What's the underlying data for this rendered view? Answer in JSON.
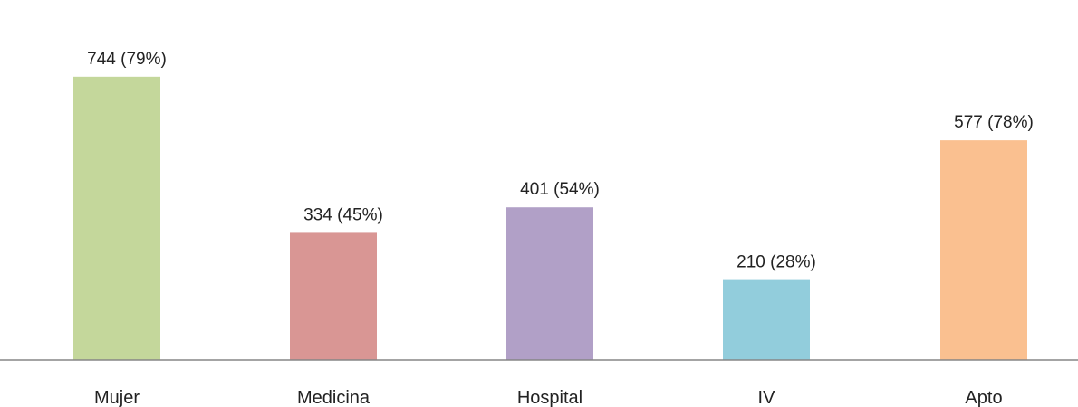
{
  "chart_data": {
    "type": "bar",
    "title": "",
    "xlabel": "",
    "ylabel": "",
    "categories": [
      "Mujer",
      "Medicina",
      "Hospital",
      "IV",
      "Apto"
    ],
    "values": [
      744,
      334,
      401,
      210,
      577
    ],
    "percentages": [
      "(79%)",
      "(45%)",
      "(54%)",
      "(28%)",
      "(78%)"
    ],
    "value_labels": [
      "744",
      "334",
      "401",
      "210",
      "577"
    ],
    "ylim": [
      0,
      822
    ],
    "grid": false,
    "legend": "none",
    "colors": [
      "#c4d79b",
      "#d99694",
      "#b1a0c7",
      "#92cddc",
      "#fac090"
    ],
    "axis_color": "#868686"
  }
}
